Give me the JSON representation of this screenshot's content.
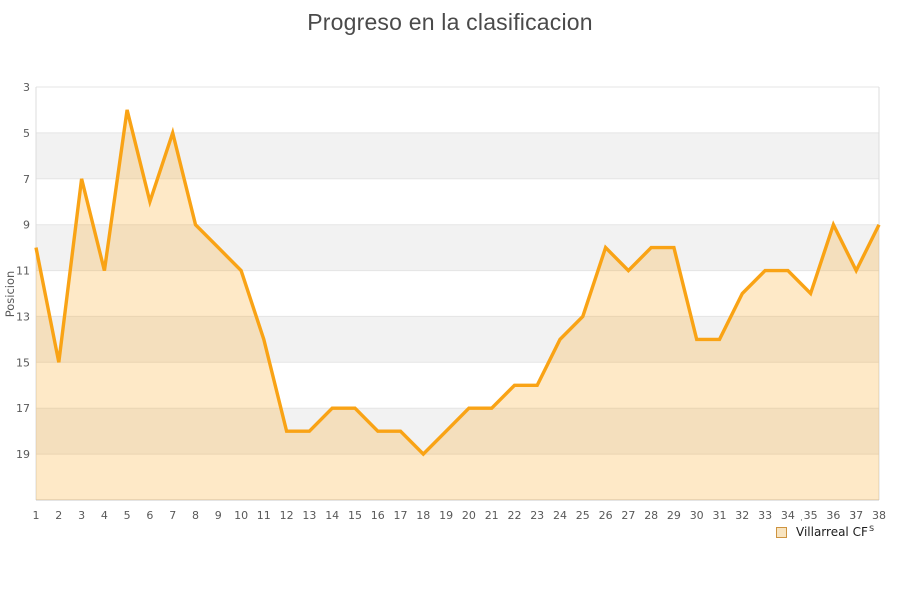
{
  "title": "Progreso en la clasificacion",
  "legend": {
    "label": "Villarreal CF",
    "artifacts": {
      "a1": "·",
      "a2": "'",
      "a3": "s"
    }
  },
  "chart_data": {
    "type": "area",
    "title": "Progreso en la clasificacion",
    "xlabel": "",
    "ylabel": "Posicion",
    "y_axis_note": "inverted: position 3 at top, 21 at bottom",
    "xlim": [
      1,
      38
    ],
    "ylim": [
      3,
      21
    ],
    "x_ticks": [
      1,
      2,
      3,
      4,
      5,
      6,
      7,
      8,
      9,
      10,
      11,
      12,
      13,
      14,
      15,
      16,
      17,
      18,
      19,
      20,
      21,
      22,
      23,
      24,
      25,
      26,
      27,
      28,
      29,
      30,
      31,
      32,
      33,
      34,
      35,
      36,
      37,
      38
    ],
    "y_ticks": [
      3,
      5,
      7,
      9,
      11,
      13,
      15,
      17,
      19
    ],
    "grid": "horizontal-bands-alternating",
    "legend_position": "bottom-right",
    "series": [
      {
        "name": "Villarreal CF",
        "x": [
          1,
          2,
          3,
          4,
          5,
          6,
          7,
          8,
          9,
          10,
          11,
          12,
          13,
          14,
          15,
          16,
          17,
          18,
          19,
          20,
          21,
          22,
          23,
          24,
          25,
          26,
          27,
          28,
          29,
          30,
          31,
          32,
          33,
          34,
          35,
          36,
          37,
          38
        ],
        "values": [
          10,
          15,
          7,
          11,
          4,
          8,
          5,
          9,
          10,
          11,
          14,
          18,
          18,
          17,
          17,
          18,
          18,
          19,
          18,
          17,
          17,
          16,
          16,
          14,
          13,
          10,
          11,
          10,
          10,
          14,
          14,
          12,
          11,
          11,
          12,
          9,
          11,
          9
        ]
      }
    ],
    "colors": {
      "line": "#F9A315",
      "area_fill": "#F9A315",
      "area_opacity": 0.24,
      "band_white": "#FFFFFF",
      "band_gray": "#F2F2F2",
      "gridline": "#E5E5E5",
      "border": "#DCDCDC",
      "axis": "#C9C9C9",
      "tick_text": "#595959",
      "title_text": "#4A4A4A"
    }
  }
}
